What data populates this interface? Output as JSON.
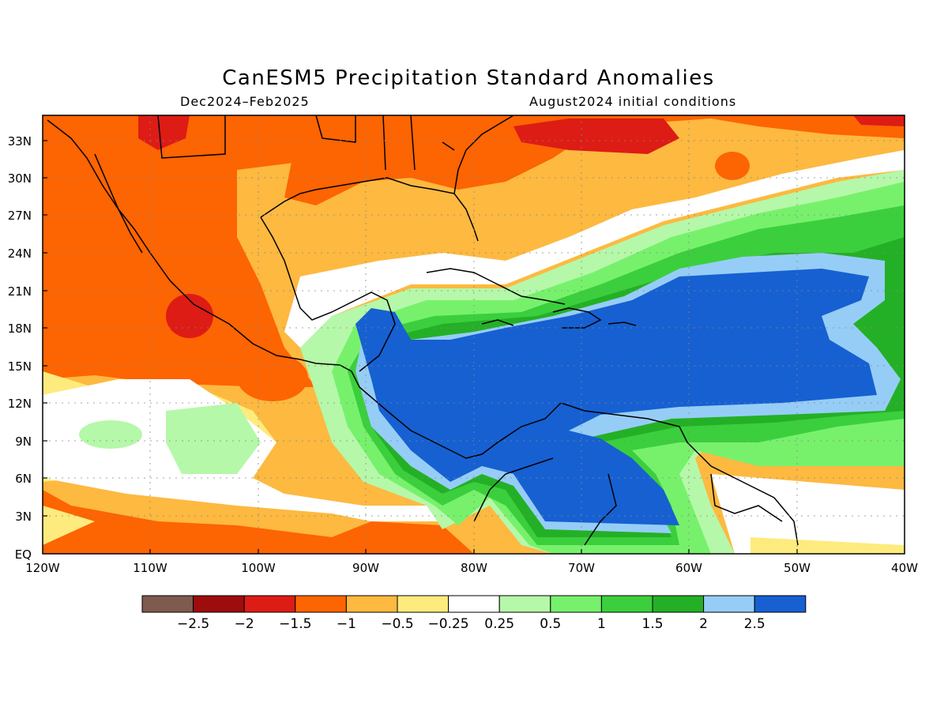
{
  "title": "CanESM5 Precipitation Standard Anomalies",
  "subtitle_left": "Dec2024–Feb2025",
  "subtitle_right": "August2024 initial conditions",
  "lat_labels": [
    "33N",
    "30N",
    "27N",
    "24N",
    "21N",
    "18N",
    "15N",
    "12N",
    "9N",
    "6N",
    "3N",
    "EQ"
  ],
  "lon_labels": [
    "120W",
    "110W",
    "100W",
    "90W",
    "80W",
    "70W",
    "60W",
    "50W",
    "40W"
  ],
  "colorbar": {
    "colors": [
      "#7f5a4f",
      "#9e0d0d",
      "#dd1c15",
      "#fd6402",
      "#fdb940",
      "#feeb7e",
      "#ffffff",
      "#b5f8a9",
      "#77f16c",
      "#3bcf3d",
      "#24b026",
      "#96cdf6",
      "#1660d2"
    ],
    "labels": [
      "−2.5",
      "−2",
      "−1.5",
      "−1",
      "−0.5",
      "−0.25",
      "0.25",
      "0.5",
      "1",
      "1.5",
      "2",
      "2.5"
    ]
  },
  "map_extent": {
    "lon_min": -120,
    "lon_max": -40,
    "lat_min": 0,
    "lat_max": 35
  }
}
